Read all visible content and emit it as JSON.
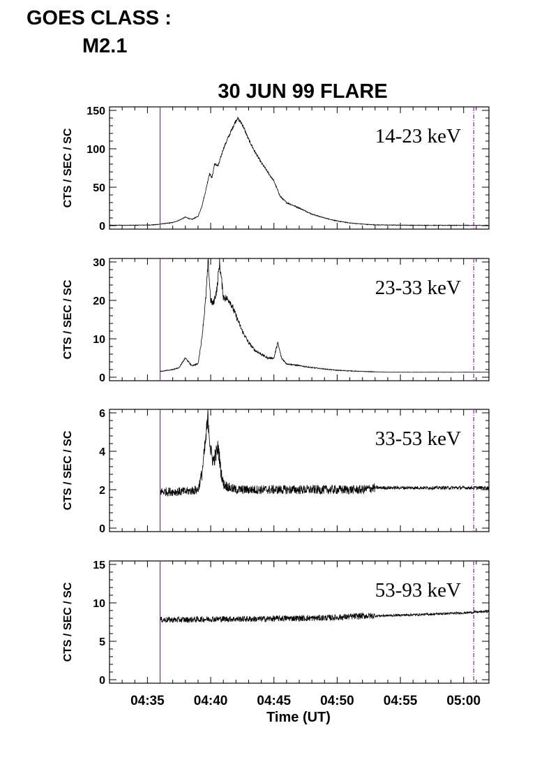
{
  "header": {
    "line1": "GOES CLASS :",
    "line2": "M2.1"
  },
  "chart_data": {
    "type": "line",
    "title": "30 JUN 99 FLARE",
    "xlabel": "Time (UT)",
    "x_ticks": [
      "04:35",
      "04:40",
      "04:45",
      "04:50",
      "04:55",
      "05:00"
    ],
    "x_range_min": [
      32.0,
      62.0
    ],
    "x_unit": "minutes after 04:00 UT",
    "markers_min": [
      36.0,
      60.8
    ],
    "marker_color": "#c000c0",
    "panels": [
      {
        "band": "14-23 keV",
        "ylabel": "CTS / SEC / SC",
        "ylim": [
          0,
          150
        ],
        "yticks": [
          "0",
          "50",
          "100",
          "150"
        ],
        "series": {
          "x": [
            32.0,
            34.0,
            35.5,
            36.0,
            37.0,
            37.5,
            38.0,
            38.5,
            39.0,
            39.3,
            39.6,
            39.9,
            40.1,
            40.3,
            40.6,
            41.0,
            41.4,
            41.8,
            42.1,
            42.5,
            43.0,
            43.5,
            44.0,
            44.5,
            45.0,
            45.5,
            46.0,
            47.0,
            48.0,
            49.0,
            50.0,
            51.0,
            52.0,
            53.0,
            54.0,
            56.0,
            58.0,
            60.0,
            62.0
          ],
          "y": [
            0.5,
            0.5,
            1,
            2,
            4,
            7,
            11,
            8,
            12,
            25,
            45,
            68,
            62,
            80,
            78,
            100,
            115,
            130,
            140,
            132,
            112,
            96,
            82,
            70,
            58,
            38,
            30,
            23,
            15,
            10,
            6,
            3.5,
            2,
            1,
            0.8,
            0.5,
            0.4,
            0.4,
            0.3
          ]
        }
      },
      {
        "band": "23-33 keV",
        "ylabel": "CTS / SEC / SC",
        "ylim": [
          0,
          30
        ],
        "yticks": [
          "0",
          "10",
          "20",
          "30"
        ],
        "series": {
          "x": [
            36.0,
            37.0,
            37.5,
            38.0,
            38.5,
            39.0,
            39.3,
            39.6,
            39.8,
            40.0,
            40.2,
            40.5,
            40.7,
            41.0,
            41.5,
            42.0,
            42.5,
            43.0,
            43.5,
            44.0,
            44.5,
            45.0,
            45.3,
            45.6,
            46.0,
            47.0,
            48.0,
            50.0,
            52.0,
            53.0,
            54.0,
            56.0,
            58.0,
            60.0,
            62.0
          ],
          "y": [
            1.5,
            2,
            2.5,
            5,
            3,
            3.5,
            10,
            20,
            30,
            20,
            19,
            23,
            30,
            21,
            20,
            16,
            12,
            9,
            7,
            6,
            5,
            5,
            9,
            5,
            3.5,
            3,
            2.5,
            1.8,
            1.5,
            1.4,
            1.3,
            1.3,
            1.3,
            1.3,
            1.3
          ]
        }
      },
      {
        "band": "33-53 keV",
        "ylabel": "CTS / SEC / SC",
        "ylim": [
          0,
          6
        ],
        "yticks": [
          "0",
          "2",
          "4",
          "6"
        ],
        "series": {
          "x": [
            36.0,
            37.0,
            38.0,
            39.0,
            39.3,
            39.6,
            39.8,
            40.0,
            40.2,
            40.4,
            40.6,
            40.8,
            41.0,
            41.5,
            42.0,
            44.0,
            46.0,
            48.0,
            50.0,
            52.0,
            53.0,
            55.0,
            57.0,
            60.0,
            62.0
          ],
          "y": [
            1.9,
            1.9,
            1.9,
            2.0,
            2.8,
            4.5,
            5.8,
            4.0,
            3.5,
            3.8,
            4.2,
            3.0,
            2.3,
            2.1,
            2.0,
            2.0,
            2.0,
            2.0,
            2.0,
            2.0,
            2.1,
            2.1,
            2.1,
            2.1,
            2.1
          ]
        }
      },
      {
        "band": "53-93 keV",
        "ylabel": "CTS / SEC / SC",
        "ylim": [
          0,
          15
        ],
        "yticks": [
          "0",
          "5",
          "10",
          "15"
        ],
        "series": {
          "x": [
            36.0,
            38.0,
            40.0,
            42.0,
            44.0,
            46.0,
            48.0,
            50.0,
            52.0,
            53.0,
            55.0,
            57.0,
            60.0,
            62.0
          ],
          "y": [
            7.8,
            7.8,
            7.9,
            7.9,
            7.9,
            8.0,
            8.0,
            8.1,
            8.3,
            8.3,
            8.4,
            8.5,
            8.7,
            8.9
          ]
        }
      }
    ]
  }
}
